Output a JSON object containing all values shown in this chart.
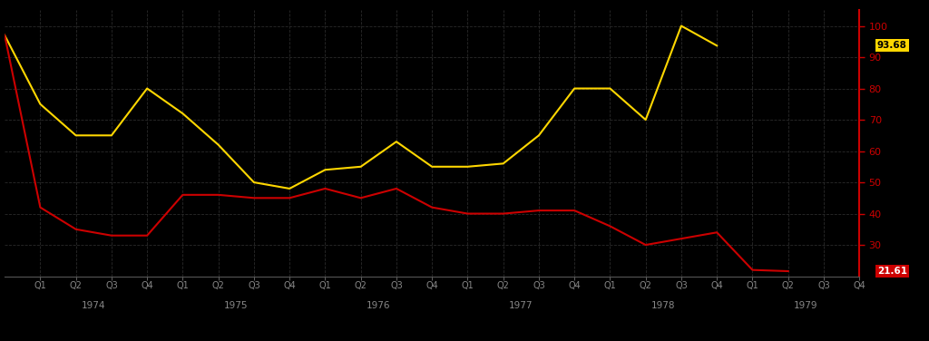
{
  "background_color": "#000000",
  "plot_bg_color": "#000000",
  "grid_color": "#2a2a2a",
  "yellow_color": "#FFD700",
  "red_color": "#CC0000",
  "tick_label_color": "#888888",
  "ylim": [
    20,
    105
  ],
  "yticks": [
    30,
    40,
    50,
    60,
    70,
    80,
    90,
    100
  ],
  "yellow_label": "93.68",
  "red_label": "21.61",
  "x_labels": [
    "Q1",
    "Q2",
    "Q3",
    "Q4",
    "Q1",
    "Q2",
    "Q3",
    "Q4",
    "Q1",
    "Q2",
    "Q3",
    "Q4",
    "Q1",
    "Q2",
    "Q3",
    "Q4",
    "Q1",
    "Q2",
    "Q3",
    "Q4",
    "Q1",
    "Q2",
    "Q3",
    "Q4"
  ],
  "year_labels": [
    "1974",
    "1975",
    "1976",
    "1977",
    "1978",
    "1979"
  ],
  "year_positions": [
    1.5,
    5.5,
    9.5,
    13.5,
    17.5,
    21.5
  ],
  "yellow_values": [
    97,
    75,
    65,
    65,
    80,
    72,
    62,
    50,
    48,
    54,
    55,
    63,
    55,
    55,
    56,
    65,
    80,
    80,
    70,
    100,
    93.68
  ],
  "red_values": [
    97,
    42,
    35,
    33,
    33,
    46,
    46,
    45,
    45,
    48,
    45,
    48,
    42,
    40,
    40,
    41,
    41,
    36,
    30,
    32,
    34,
    22,
    21.61
  ],
  "yellow_x_indices": [
    0,
    1,
    2,
    3,
    4,
    5,
    6,
    7,
    8,
    9,
    10,
    11,
    12,
    13,
    14,
    15,
    16,
    17,
    18,
    19,
    20
  ],
  "red_x_indices": [
    0,
    1,
    2,
    3,
    4,
    5,
    6,
    7,
    8,
    9,
    10,
    11,
    12,
    13,
    14,
    15,
    16,
    17,
    18,
    19,
    20,
    21,
    22
  ],
  "total_quarters": 24
}
